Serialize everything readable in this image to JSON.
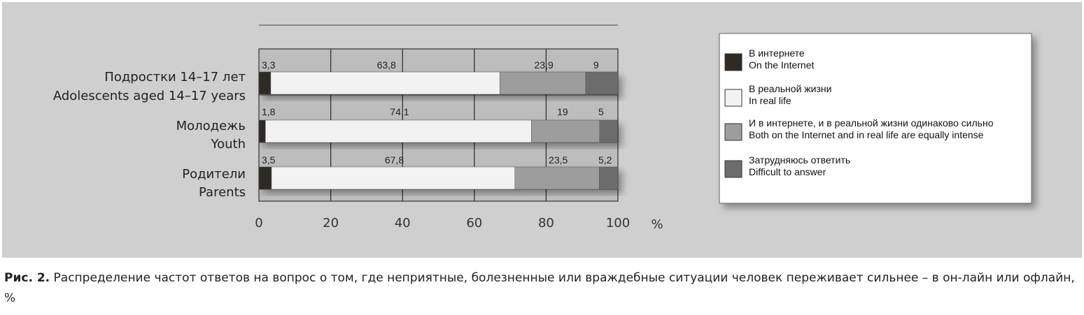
{
  "chart_data": {
    "type": "bar",
    "stacked": true,
    "orientation": "horizontal",
    "categories": [
      [
        "Подростки 14–17 лет",
        "Adolescents aged 14–17 years"
      ],
      [
        "Молодежь",
        "Youth"
      ],
      [
        "Родители",
        "Parents"
      ]
    ],
    "series": [
      {
        "name": [
          "В интернете",
          "On the Internet"
        ],
        "values": [
          3.3,
          1.8,
          3.5
        ],
        "labels": [
          "3,3",
          "1,8",
          "3,5"
        ],
        "color": "#2f2a25"
      },
      {
        "name": [
          "В реальной жизни",
          "In real life"
        ],
        "values": [
          63.8,
          74.1,
          67.8
        ],
        "labels": [
          "63,8",
          "74,1",
          "67,8"
        ],
        "color": "#f2f2f2"
      },
      {
        "name": [
          "И в интернете, и в реальной жизни одинаково сильно",
          "Both on the Internet and in real life are equally intense"
        ],
        "values": [
          23.9,
          19,
          23.5
        ],
        "labels": [
          "23,9",
          "19",
          "23,5"
        ],
        "color": "#9d9d9d"
      },
      {
        "name": [
          "Затрудняюсь ответить",
          "Difficult to answer"
        ],
        "values": [
          9,
          5,
          5.2
        ],
        "labels": [
          "9",
          "5",
          "5,2"
        ],
        "color": "#6c6c6c"
      }
    ],
    "xlim": [
      0,
      100
    ],
    "xticks": [
      "0",
      "20",
      "40",
      "60",
      "80",
      "100"
    ],
    "xunit": "%",
    "legend_position": "right",
    "grid": true
  },
  "caption": {
    "label": "Рис. 2.",
    "text": " Распределение частот ответов на вопрос о том, где неприятные, болезненные или враждебные ситуации человек переживает сильнее – в он-лайн или офлайн, %"
  }
}
